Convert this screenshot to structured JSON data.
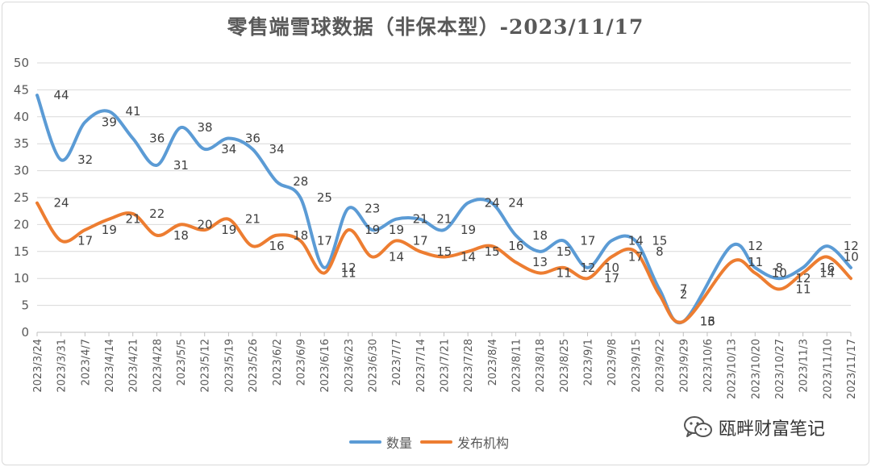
{
  "chart_data": {
    "type": "line",
    "title": "零售端雪球数据（非保本型）-2023/11/17",
    "xlabel": "",
    "ylabel": "",
    "ylim": [
      0,
      50
    ],
    "yticks": [
      0,
      5,
      10,
      15,
      20,
      25,
      30,
      35,
      40,
      45,
      50
    ],
    "grid": true,
    "legend_position": "bottom",
    "smooth": true,
    "categories": [
      "2023/3/24",
      "2023/3/31",
      "2023/4/7",
      "2023/4/14",
      "2023/4/21",
      "2023/4/28",
      "2023/5/5",
      "2023/5/12",
      "2023/5/19",
      "2023/5/26",
      "2023/6/2",
      "2023/6/9",
      "2023/6/16",
      "2023/6/23",
      "2023/6/30",
      "2023/7/7",
      "2023/7/14",
      "2023/7/21",
      "2023/7/28",
      "2023/8/4",
      "2023/8/11",
      "2023/8/18",
      "2023/8/25",
      "2023/9/1",
      "2023/9/8",
      "2023/9/15",
      "2023/9/22",
      "2023/9/29",
      "2023/10/6",
      "2023/10/13",
      "2023/10/20",
      "2023/10/27",
      "2023/11/3",
      "2023/11/10",
      "2023/11/17"
    ],
    "series": [
      {
        "name": "数量",
        "color": "#5b9bd5",
        "values": [
          44,
          32,
          39,
          41,
          36,
          31,
          38,
          34,
          36,
          34,
          28,
          25,
          12,
          23,
          19,
          21,
          21,
          19,
          24,
          24,
          18,
          15,
          17,
          12,
          17,
          17,
          8,
          2,
          null,
          16,
          12,
          10,
          12,
          16,
          12
        ]
      },
      {
        "name": "发布机构",
        "color": "#ed7d31",
        "values": [
          24,
          17,
          19,
          21,
          22,
          18,
          20,
          19,
          21,
          16,
          18,
          17,
          11,
          19,
          14,
          17,
          15,
          14,
          15,
          16,
          13,
          11,
          12,
          10,
          14,
          15,
          7,
          2,
          null,
          13,
          11,
          8,
          11,
          14,
          10
        ]
      }
    ],
    "data_labels": [
      {
        "text": "44"
      },
      {
        "text": "24"
      },
      {
        "text": "32"
      },
      {
        "text": "17"
      },
      {
        "text": "39"
      },
      {
        "text": "19"
      },
      {
        "text": "41"
      },
      {
        "text": "21"
      },
      {
        "text": "36"
      },
      {
        "text": "22"
      },
      {
        "text": "31"
      },
      {
        "text": "18"
      },
      {
        "text": "38"
      },
      {
        "text": "20"
      },
      {
        "text": "34"
      },
      {
        "text": "19"
      },
      {
        "text": "36"
      },
      {
        "text": "21"
      },
      {
        "text": "34"
      },
      {
        "text": "16"
      },
      {
        "text": "28"
      },
      {
        "text": "18"
      },
      {
        "text": "25"
      },
      {
        "text": "17"
      },
      {
        "text": "12"
      },
      {
        "text": "11"
      },
      {
        "text": "23"
      },
      {
        "text": "19"
      },
      {
        "text": "19"
      },
      {
        "text": "14"
      },
      {
        "text": "21"
      },
      {
        "text": "17"
      },
      {
        "text": "21"
      },
      {
        "text": "15"
      },
      {
        "text": "19"
      },
      {
        "text": "14"
      },
      {
        "text": "24"
      },
      {
        "text": "15"
      },
      {
        "text": "24"
      },
      {
        "text": "16"
      },
      {
        "text": "18"
      },
      {
        "text": "13"
      },
      {
        "text": "15"
      },
      {
        "text": "11"
      },
      {
        "text": "17"
      },
      {
        "text": "12"
      },
      {
        "text": "10"
      },
      {
        "text": "17"
      },
      {
        "text": "14"
      },
      {
        "text": "17"
      },
      {
        "text": "15"
      },
      {
        "text": "8"
      },
      {
        "text": "7"
      },
      {
        "text": "2"
      },
      {
        "text": "16"
      },
      {
        "text": "13"
      },
      {
        "text": "12"
      },
      {
        "text": "11"
      },
      {
        "text": "8"
      },
      {
        "text": "10"
      },
      {
        "text": "12"
      },
      {
        "text": "11"
      },
      {
        "text": "16"
      },
      {
        "text": "14"
      },
      {
        "text": "12"
      },
      {
        "text": "10"
      }
    ]
  },
  "legend": {
    "items": [
      {
        "label": "数量",
        "color": "#5b9bd5"
      },
      {
        "label": "发布机构",
        "color": "#ed7d31"
      }
    ]
  },
  "watermark": {
    "text": "瓯畔财富笔记",
    "icon": "wechat-icon"
  },
  "colors": {
    "axis_text": "#595959",
    "grid": "#d9d9d9",
    "frame": "#d9d9d9"
  }
}
